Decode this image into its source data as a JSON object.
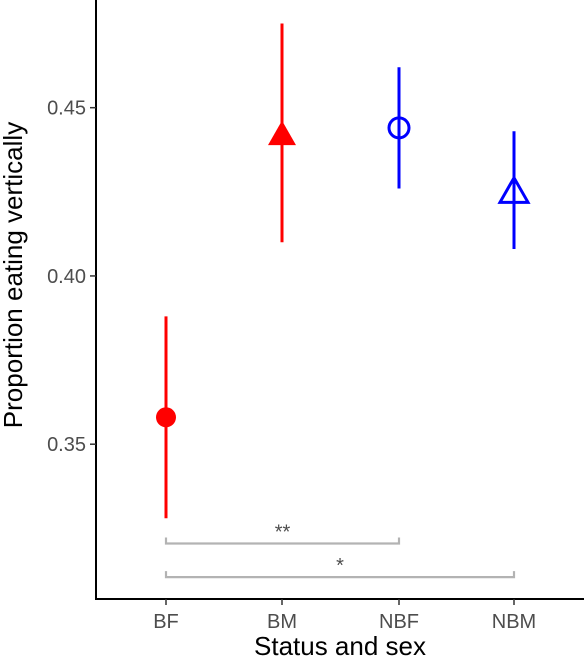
{
  "chart_data": {
    "type": "scatter",
    "subtype": "point-with-errorbar",
    "title": "",
    "xlabel": "Status and sex",
    "ylabel": "Proportion eating vertically",
    "categories": [
      "BF",
      "BM",
      "NBF",
      "NBM"
    ],
    "points": [
      {
        "category": "BF",
        "y": 0.358,
        "ymin": 0.328,
        "ymax": 0.388,
        "color": "#ff0000",
        "shape": "circle",
        "filled": true
      },
      {
        "category": "BM",
        "y": 0.442,
        "ymin": 0.41,
        "ymax": 0.475,
        "color": "#ff0000",
        "shape": "triangle",
        "filled": true
      },
      {
        "category": "NBF",
        "y": 0.444,
        "ymin": 0.426,
        "ymax": 0.462,
        "color": "#0000ff",
        "shape": "circle",
        "filled": false
      },
      {
        "category": "NBM",
        "y": 0.425,
        "ymin": 0.408,
        "ymax": 0.443,
        "color": "#0000ff",
        "shape": "triangle",
        "filled": false
      }
    ],
    "yticks": [
      0.35,
      0.4,
      0.45
    ],
    "ytick_labels": [
      "0.35",
      "0.40",
      "0.45"
    ],
    "ylim": [
      0.304,
      0.482
    ],
    "grid": false,
    "significance": [
      {
        "from": "BF",
        "to": "NBF",
        "y": 0.3205,
        "label": "**"
      },
      {
        "from": "BF",
        "to": "NBM",
        "y": 0.3105,
        "label": "*"
      }
    ],
    "bracket_color": "#b3b3b3"
  }
}
